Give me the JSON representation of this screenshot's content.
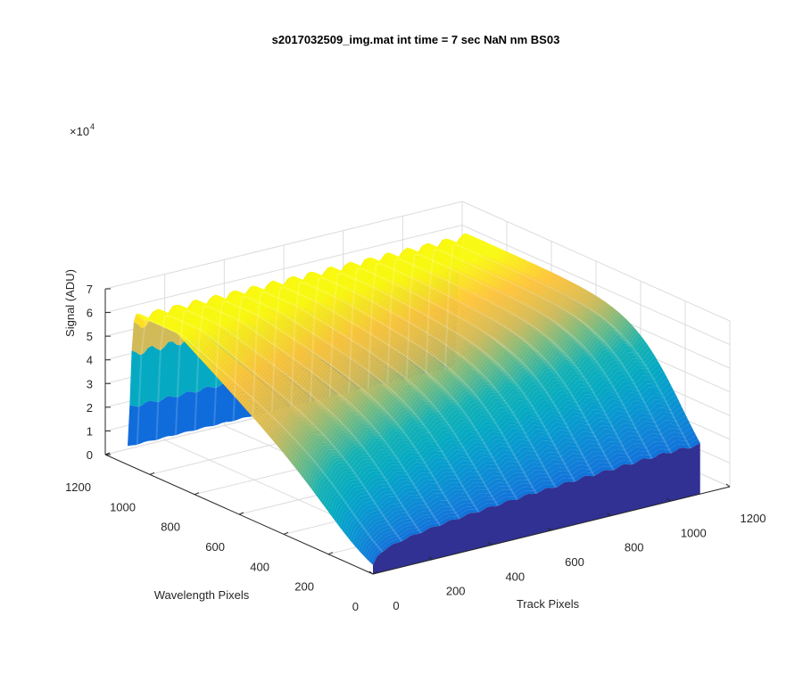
{
  "chart_data": {
    "type": "surface",
    "title": "s2017032509_img.mat int time = 7 sec  NaN nm BS03",
    "xlabel": "Track Pixels",
    "ylabel": "Wavelength Pixels",
    "zlabel": "Signal (ADU)",
    "z_exponent_label": "×10",
    "z_exponent": "4",
    "xlim": [
      0,
      1200
    ],
    "ylim": [
      0,
      1200
    ],
    "zlim": [
      0,
      70000
    ],
    "x_ticks": [
      "0",
      "200",
      "400",
      "600",
      "800",
      "1000",
      "1200"
    ],
    "y_ticks": [
      "0",
      "200",
      "400",
      "600",
      "800",
      "1000",
      "1200"
    ],
    "z_ticks": [
      "0",
      "1",
      "2",
      "3",
      "4",
      "5",
      "6",
      "7"
    ],
    "grid": true,
    "colormap": "parula",
    "surface_extent": {
      "track_max": 1100,
      "wavelength_max": 1100
    },
    "peak_signal": 66000,
    "peak_count": 17,
    "colors": {
      "low": "#352a87",
      "mid": "#15b1c4",
      "high": "#f9fb0e"
    }
  }
}
